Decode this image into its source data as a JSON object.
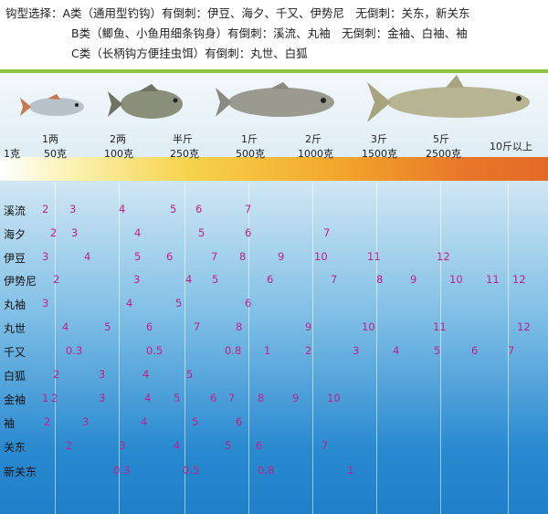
{
  "header": {
    "line1": "钩型选择：A类（通用型钓钩）有倒刺：伊豆、海夕、千又、伊势尼　无倒刺：关东，新关东",
    "line2": "B类（鲫鱼、小鱼用细条钩身）有倒刺：溪流、丸袖　无倒刺：金袖、白袖、袖",
    "line3": "C类（长柄钩方便挂虫饵）有倒刺：丸世、白狐"
  },
  "weights": {
    "w1": "1克",
    "w2a": "1两",
    "w2b": "50克",
    "w3a": "2两",
    "w3b": "100克",
    "w4a": "半斤",
    "w4b": "250克",
    "w5a": "1斤",
    "w5b": "500克",
    "w6a": "2斤",
    "w6b": "1000克",
    "w7a": "3斤",
    "w7b": "1500克",
    "w8a": "5斤",
    "w8b": "2500克",
    "w9": "10斤以上"
  },
  "rows": [
    {
      "label": "溪流",
      "nums": [
        "2",
        "3",
        "4",
        "5",
        "6",
        "7"
      ]
    },
    {
      "label": "海夕",
      "nums": [
        "2",
        "3",
        "4",
        "5",
        "6",
        "7"
      ]
    },
    {
      "label": "伊豆",
      "nums": [
        "3",
        "4",
        "5",
        "6",
        "7",
        "8",
        "9",
        "10",
        "11",
        "12"
      ]
    },
    {
      "label": "伊势尼",
      "nums": [
        "2",
        "3",
        "4",
        "5",
        "6",
        "7",
        "8",
        "9",
        "10",
        "11",
        "12"
      ]
    },
    {
      "label": "丸袖",
      "nums": [
        "3",
        "4",
        "5",
        "6"
      ]
    },
    {
      "label": "丸世",
      "nums": [
        "4",
        "5",
        "6",
        "7",
        "8",
        "9",
        "10",
        "11",
        "12"
      ]
    },
    {
      "label": "千又",
      "nums": [
        "0.3",
        "0.5",
        "0.8",
        "1",
        "2",
        "3",
        "4",
        "5",
        "6",
        "7"
      ]
    },
    {
      "label": "白狐",
      "nums": [
        "2",
        "3",
        "4",
        "5"
      ]
    },
    {
      "label": "金袖",
      "nums": [
        "1",
        "2",
        "3",
        "4",
        "5",
        "6",
        "7",
        "8",
        "9",
        "10"
      ]
    },
    {
      "label": "袖",
      "nums": [
        "2",
        "3",
        "4",
        "5",
        "6"
      ]
    },
    {
      "label": "关东",
      "nums": [
        "2",
        "3",
        "4",
        "5",
        "6",
        "7"
      ]
    },
    {
      "label": "新关东",
      "nums": [
        "0.3",
        "0.5",
        "0.8",
        "1"
      ]
    }
  ],
  "colors": {
    "number": "#c0208a",
    "header_border": "#8cc63f"
  }
}
